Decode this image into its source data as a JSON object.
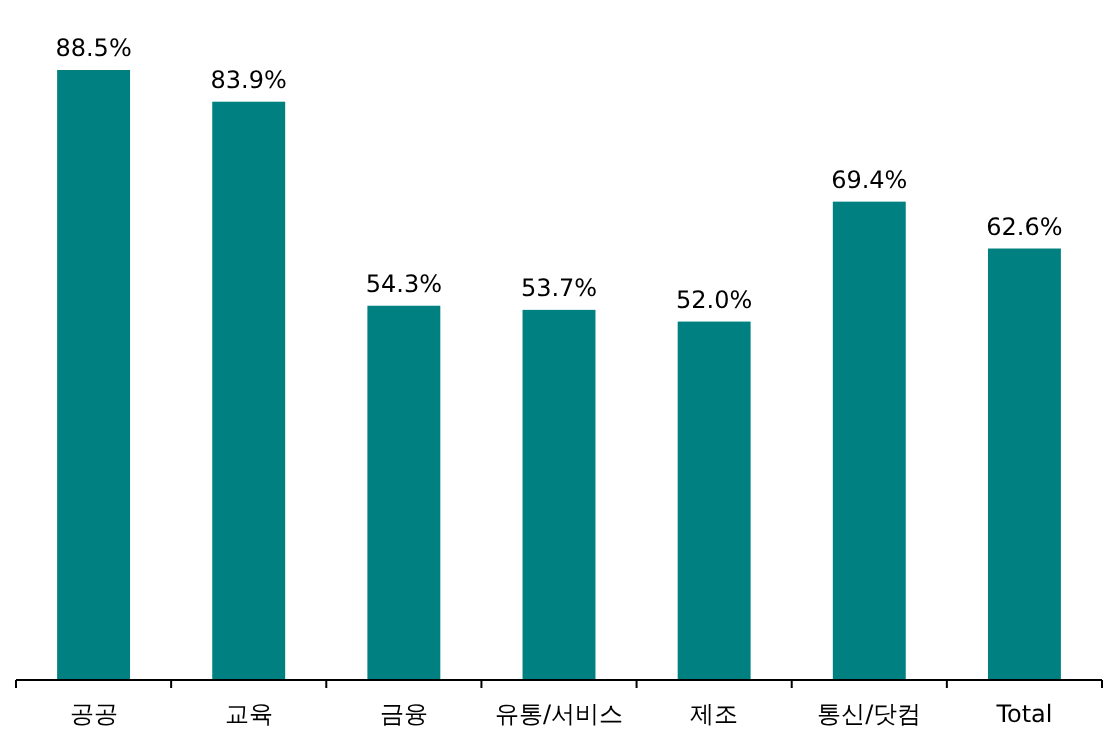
{
  "chart_data": {
    "type": "bar",
    "categories": [
      "공공",
      "교육",
      "금융",
      "유통/서비스",
      "제조",
      "통신/닷컴",
      "Total"
    ],
    "values": [
      88.5,
      83.9,
      54.3,
      53.7,
      52.0,
      69.4,
      62.6
    ],
    "value_labels": [
      "88.5%",
      "83.9%",
      "54.3%",
      "53.7%",
      "52.0%",
      "69.4%",
      "62.6%"
    ],
    "color": "#008080"
  }
}
